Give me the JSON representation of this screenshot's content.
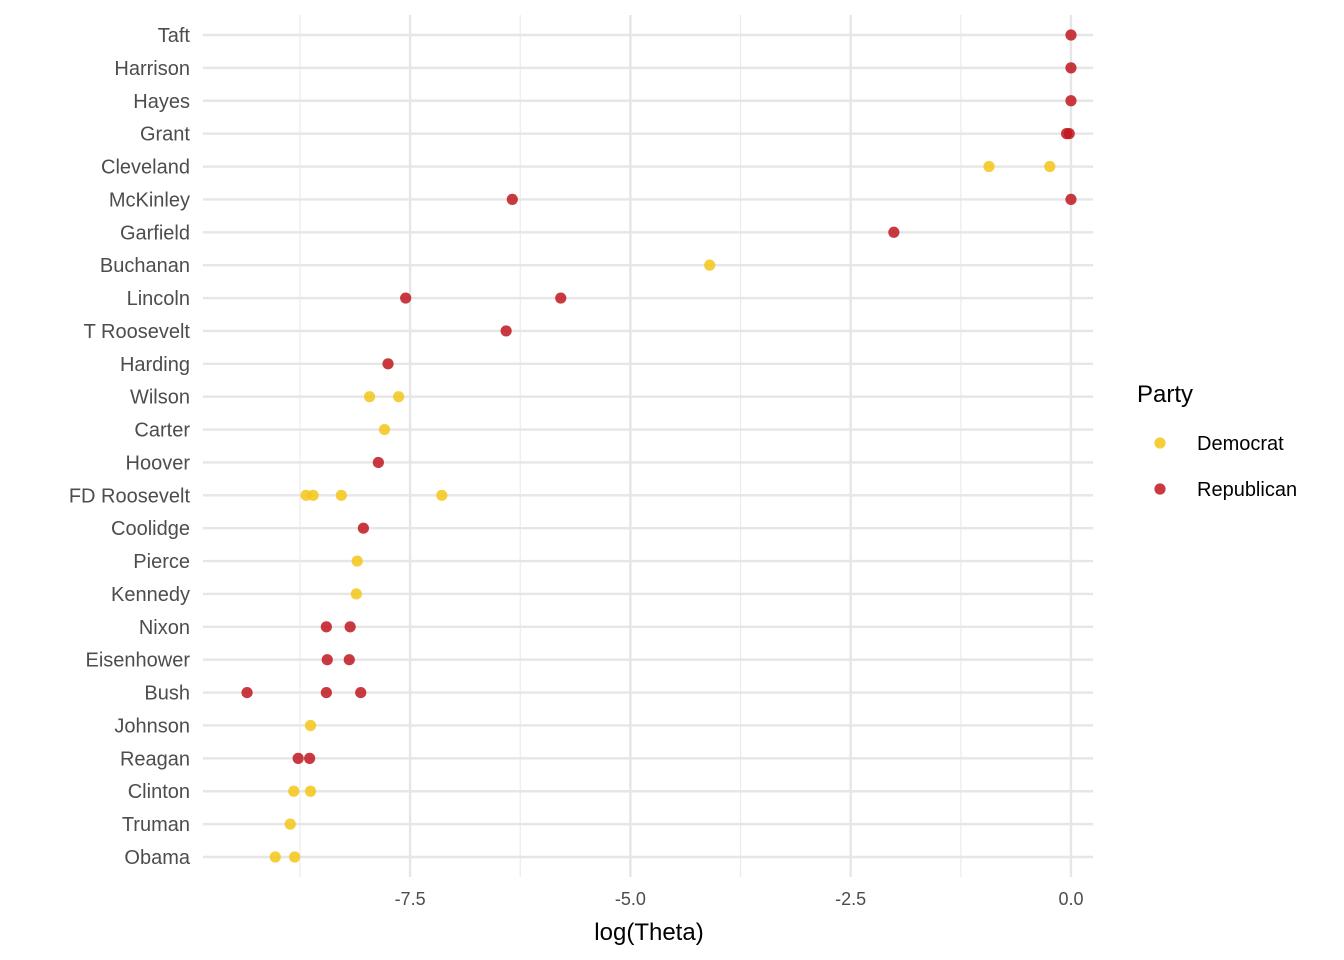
{
  "chart_data": {
    "type": "scatter",
    "xlabel": "log(Theta)",
    "ylabel": "",
    "xlim": [
      -9.85,
      0.25
    ],
    "xticks": [
      -7.5,
      -5.0,
      -2.5,
      0.0
    ],
    "xtick_labels": [
      "-7.5",
      "-5.0",
      "-2.5",
      "0.0"
    ],
    "grid": true,
    "legend": {
      "title": "Party",
      "placement": "right",
      "entries": [
        {
          "name": "Democrat",
          "color": "#F5C518"
        },
        {
          "name": "Republican",
          "color": "#C0161E"
        }
      ]
    },
    "categories": [
      "Taft",
      "Harrison",
      "Hayes",
      "Grant",
      "Cleveland",
      "McKinley",
      "Garfield",
      "Buchanan",
      "Lincoln",
      "T Roosevelt",
      "Harding",
      "Wilson",
      "Carter",
      "Hoover",
      "FD Roosevelt",
      "Coolidge",
      "Pierce",
      "Kennedy",
      "Nixon",
      "Eisenhower",
      "Bush",
      "Johnson",
      "Reagan",
      "Clinton",
      "Truman",
      "Obama"
    ],
    "series": [
      {
        "name": "Democrat",
        "color": "#F5C518",
        "points": [
          {
            "y": "Cleveland",
            "x": -0.93
          },
          {
            "y": "Cleveland",
            "x": -0.24
          },
          {
            "y": "Buchanan",
            "x": -4.1
          },
          {
            "y": "Wilson",
            "x": -7.96
          },
          {
            "y": "Wilson",
            "x": -7.63
          },
          {
            "y": "Carter",
            "x": -7.79
          },
          {
            "y": "FD Roosevelt",
            "x": -8.68
          },
          {
            "y": "FD Roosevelt",
            "x": -8.6
          },
          {
            "y": "FD Roosevelt",
            "x": -8.28
          },
          {
            "y": "FD Roosevelt",
            "x": -7.14
          },
          {
            "y": "Pierce",
            "x": -8.1
          },
          {
            "y": "Kennedy",
            "x": -8.11
          },
          {
            "y": "Johnson",
            "x": -8.63
          },
          {
            "y": "Clinton",
            "x": -8.82
          },
          {
            "y": "Clinton",
            "x": -8.63
          },
          {
            "y": "Truman",
            "x": -8.86
          },
          {
            "y": "Obama",
            "x": -9.03
          },
          {
            "y": "Obama",
            "x": -8.81
          }
        ]
      },
      {
        "name": "Republican",
        "color": "#C0161E",
        "points": [
          {
            "y": "Taft",
            "x": 0.0
          },
          {
            "y": "Harrison",
            "x": 0.0
          },
          {
            "y": "Hayes",
            "x": 0.0
          },
          {
            "y": "Grant",
            "x": -0.05
          },
          {
            "y": "Grant",
            "x": -0.02
          },
          {
            "y": "McKinley",
            "x": -6.34
          },
          {
            "y": "McKinley",
            "x": 0.0
          },
          {
            "y": "Garfield",
            "x": -2.01
          },
          {
            "y": "Lincoln",
            "x": -7.55
          },
          {
            "y": "Lincoln",
            "x": -5.79
          },
          {
            "y": "T Roosevelt",
            "x": -6.41
          },
          {
            "y": "Harding",
            "x": -7.75
          },
          {
            "y": "Hoover",
            "x": -7.86
          },
          {
            "y": "Coolidge",
            "x": -8.03
          },
          {
            "y": "Nixon",
            "x": -8.45
          },
          {
            "y": "Nixon",
            "x": -8.18
          },
          {
            "y": "Eisenhower",
            "x": -8.44
          },
          {
            "y": "Eisenhower",
            "x": -8.19
          },
          {
            "y": "Bush",
            "x": -9.35
          },
          {
            "y": "Bush",
            "x": -8.45
          },
          {
            "y": "Bush",
            "x": -8.06
          },
          {
            "y": "Reagan",
            "x": -8.77
          },
          {
            "y": "Reagan",
            "x": -8.64
          }
        ]
      }
    ]
  }
}
